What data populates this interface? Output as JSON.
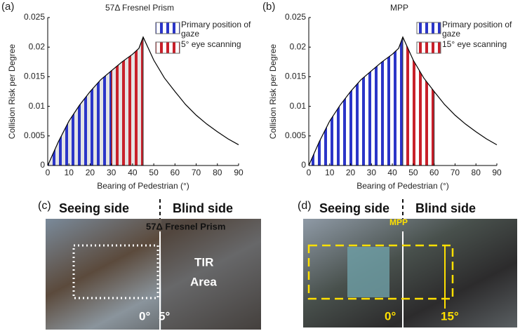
{
  "chart_data": [
    {
      "type": "line",
      "panel": "(a)",
      "title": "57Δ Fresnel Prism",
      "x_label": "Bearing of Pedestrian (°)",
      "y_label": "Collision Risk per Degree",
      "x": [
        0,
        5,
        10,
        15,
        20,
        25,
        30,
        35,
        40,
        43,
        45,
        50,
        55,
        60,
        65,
        70,
        75,
        80,
        85,
        90
      ],
      "values": [
        0,
        0.004,
        0.0075,
        0.0102,
        0.0125,
        0.0145,
        0.016,
        0.0175,
        0.0188,
        0.0198,
        0.0217,
        0.0178,
        0.0148,
        0.0125,
        0.0103,
        0.0085,
        0.007,
        0.0057,
        0.0045,
        0.0035
      ],
      "color": "#000000",
      "area_color": "#e4e4e4",
      "regions": [
        {
          "name": "Primary position of gaze",
          "color": "#2b35c8",
          "range": [
            0,
            30
          ]
        },
        {
          "name": "5° eye scanning",
          "color": "#c8202a",
          "range": [
            30,
            45
          ]
        }
      ],
      "xlim": [
        0,
        90
      ],
      "ylim": [
        0,
        0.025
      ],
      "xticks": [
        0,
        10,
        20,
        30,
        40,
        50,
        60,
        70,
        80,
        90
      ],
      "yticks": [
        0,
        0.005,
        0.01,
        0.015,
        0.02,
        0.025
      ]
    },
    {
      "type": "line",
      "panel": "(b)",
      "title": "MPP",
      "x_label": "Bearing of Pedestrian (°)",
      "y_label": "Collision Risk per Degree",
      "x": [
        0,
        5,
        10,
        15,
        20,
        25,
        30,
        35,
        40,
        43,
        45,
        50,
        55,
        60,
        65,
        70,
        75,
        80,
        85,
        90
      ],
      "values": [
        0,
        0.004,
        0.0075,
        0.0102,
        0.0125,
        0.0145,
        0.016,
        0.0175,
        0.0188,
        0.0198,
        0.0217,
        0.0178,
        0.0148,
        0.0125,
        0.0103,
        0.0085,
        0.007,
        0.0057,
        0.0045,
        0.0035
      ],
      "color": "#000000",
      "area_color": "#ffffff",
      "regions": [
        {
          "name": "Primary position of gaze",
          "color": "#2b35c8",
          "range": [
            0,
            45
          ]
        },
        {
          "name": "15° eye scanning",
          "color": "#c8202a",
          "range": [
            45,
            60
          ]
        }
      ],
      "xlim": [
        0,
        90
      ],
      "ylim": [
        0,
        0.025
      ],
      "xticks": [
        0,
        10,
        20,
        30,
        40,
        50,
        60,
        70,
        80,
        90
      ],
      "yticks": [
        0,
        0.005,
        0.01,
        0.015,
        0.02,
        0.025
      ]
    }
  ],
  "photos": [
    {
      "panel": "(c)",
      "seeing": "Seeing side",
      "blind": "Blind side",
      "caption": "57Δ Fresnel Prism",
      "area": [
        "TIR",
        "Area"
      ],
      "angles": [
        "0°",
        "5°"
      ]
    },
    {
      "panel": "(d)",
      "seeing": "Seeing side",
      "blind": "Blind side",
      "caption": "MPP",
      "angles": [
        "0°",
        "15°"
      ]
    }
  ]
}
